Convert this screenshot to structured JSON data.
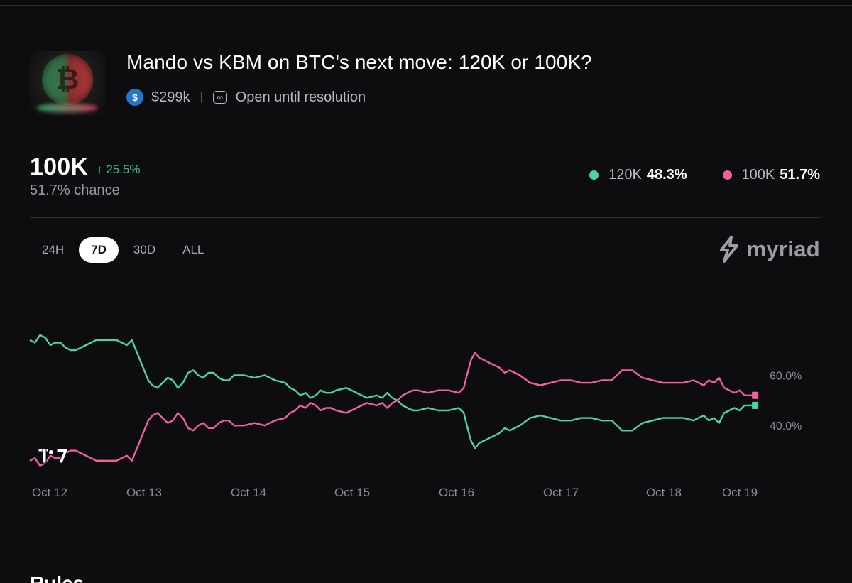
{
  "market": {
    "title": "Mando vs KBM on BTC's next move: 120K or 100K?",
    "volume": "$299k",
    "separator": "|",
    "status": "Open until resolution",
    "thumbnail_icon": "bitcoin-coin-image",
    "currency_icon": "usdc-icon",
    "currency_symbol": "$",
    "status_icon": "infinity-icon",
    "status_symbol": "∞"
  },
  "selected_outcome": {
    "label": "100K",
    "change": "↑ 25.5%",
    "chance": "51.7% chance"
  },
  "legend": [
    {
      "label": "120K",
      "pct": "48.3%",
      "color": "#4fd1a5"
    },
    {
      "label": "100K",
      "pct": "51.7%",
      "color": "#f0609e"
    }
  ],
  "ranges": [
    {
      "label": "24H",
      "active": false
    },
    {
      "label": "7D",
      "active": true
    },
    {
      "label": "30D",
      "active": false
    },
    {
      "label": "ALL",
      "active": false
    }
  ],
  "brand": {
    "name": "myriad",
    "icon": "myriad-logo-icon"
  },
  "watermark": {
    "text": "TV",
    "icon": "tradingview-logo-icon"
  },
  "next_section_heading": "Rules",
  "chart_data": {
    "type": "line",
    "title": "",
    "xlabel": "",
    "ylabel": "",
    "x_ticks": [
      "Oct 12",
      "Oct 13",
      "Oct 14",
      "Oct 15",
      "Oct 16",
      "Oct 17",
      "Oct 18",
      "Oct 19"
    ],
    "x_range": [
      12.0,
      19.12
    ],
    "ylim": [
      20,
      85
    ],
    "y_ticks": [
      {
        "value": 60,
        "label": "60.0%"
      },
      {
        "value": 40,
        "label": "40.0%"
      }
    ],
    "grid": false,
    "series": [
      {
        "name": "120K",
        "color": "#4fd1a5",
        "x": [
          12.0,
          12.05,
          12.1,
          12.15,
          12.2,
          12.25,
          12.3,
          12.35,
          12.4,
          12.45,
          12.5,
          12.55,
          12.6,
          12.65,
          12.7,
          12.75,
          12.8,
          12.85,
          12.9,
          12.95,
          13.0,
          13.08,
          13.12,
          13.16,
          13.2,
          13.25,
          13.3,
          13.35,
          13.4,
          13.45,
          13.5,
          13.55,
          13.6,
          13.65,
          13.7,
          13.75,
          13.8,
          13.85,
          13.9,
          13.95,
          14.0,
          14.1,
          14.2,
          14.3,
          14.4,
          14.5,
          14.55,
          14.6,
          14.65,
          14.7,
          14.75,
          14.8,
          14.85,
          14.9,
          14.95,
          15.0,
          15.1,
          15.2,
          15.3,
          15.4,
          15.45,
          15.5,
          15.55,
          15.6,
          15.65,
          15.7,
          15.75,
          15.8,
          15.9,
          16.0,
          16.1,
          16.2,
          16.25,
          16.28,
          16.32,
          16.36,
          16.4,
          16.45,
          16.5,
          16.55,
          16.6,
          16.65,
          16.7,
          16.8,
          16.9,
          17.0,
          17.1,
          17.2,
          17.3,
          17.4,
          17.5,
          17.6,
          17.7,
          17.8,
          17.9,
          18.0,
          18.1,
          18.2,
          18.3,
          18.4,
          18.5,
          18.55,
          18.6,
          18.65,
          18.7,
          18.75,
          18.8,
          18.85,
          18.9,
          18.95,
          19.0,
          19.05,
          19.1
        ],
        "values": [
          74,
          73,
          76,
          75,
          72,
          73,
          73,
          71,
          70,
          70,
          71,
          72,
          73,
          74,
          74,
          74,
          74,
          74,
          73,
          72,
          74,
          66,
          62,
          58,
          56,
          55,
          57,
          59,
          58,
          55,
          57,
          61,
          62,
          60,
          59,
          61,
          61,
          59,
          58,
          58,
          60,
          60,
          59,
          60,
          58,
          57,
          55,
          54,
          52,
          53,
          51,
          52,
          54,
          53,
          53,
          54,
          55,
          53,
          51,
          52,
          51,
          53,
          51,
          50,
          48,
          47,
          46,
          46,
          47,
          46,
          46,
          47,
          45,
          40,
          34,
          31,
          33,
          34,
          35,
          36,
          37,
          39,
          38,
          40,
          43,
          44,
          43,
          42,
          42,
          43,
          43,
          42,
          42,
          38,
          38,
          41,
          42,
          43,
          43,
          43,
          42,
          43,
          44,
          42,
          43,
          41,
          45,
          46,
          47,
          46,
          48,
          48,
          48
        ]
      },
      {
        "name": "100K",
        "color": "#f0609e",
        "x": [
          12.0,
          12.05,
          12.1,
          12.15,
          12.2,
          12.25,
          12.3,
          12.35,
          12.4,
          12.45,
          12.5,
          12.55,
          12.6,
          12.65,
          12.7,
          12.75,
          12.8,
          12.85,
          12.9,
          12.95,
          13.0,
          13.08,
          13.12,
          13.16,
          13.2,
          13.25,
          13.3,
          13.35,
          13.4,
          13.45,
          13.5,
          13.55,
          13.6,
          13.65,
          13.7,
          13.75,
          13.8,
          13.85,
          13.9,
          13.95,
          14.0,
          14.1,
          14.2,
          14.3,
          14.4,
          14.5,
          14.55,
          14.6,
          14.65,
          14.7,
          14.75,
          14.8,
          14.85,
          14.9,
          14.95,
          15.0,
          15.1,
          15.2,
          15.3,
          15.4,
          15.45,
          15.5,
          15.55,
          15.6,
          15.65,
          15.7,
          15.75,
          15.8,
          15.9,
          16.0,
          16.1,
          16.2,
          16.25,
          16.28,
          16.32,
          16.36,
          16.4,
          16.45,
          16.5,
          16.55,
          16.6,
          16.65,
          16.7,
          16.8,
          16.9,
          17.0,
          17.1,
          17.2,
          17.3,
          17.4,
          17.5,
          17.6,
          17.7,
          17.8,
          17.9,
          18.0,
          18.1,
          18.2,
          18.3,
          18.4,
          18.5,
          18.55,
          18.6,
          18.65,
          18.7,
          18.75,
          18.8,
          18.85,
          18.9,
          18.95,
          19.0,
          19.05,
          19.1
        ],
        "values": [
          26,
          27,
          24,
          25,
          28,
          27,
          27,
          29,
          30,
          30,
          29,
          28,
          27,
          26,
          26,
          26,
          26,
          26,
          27,
          28,
          26,
          34,
          38,
          42,
          44,
          45,
          43,
          41,
          42,
          45,
          43,
          39,
          38,
          40,
          41,
          39,
          39,
          41,
          42,
          42,
          40,
          40,
          41,
          40,
          42,
          43,
          45,
          46,
          48,
          47,
          49,
          48,
          46,
          47,
          47,
          46,
          45,
          47,
          49,
          48,
          49,
          47,
          49,
          50,
          52,
          53,
          54,
          54,
          53,
          54,
          54,
          53,
          55,
          60,
          66,
          69,
          67,
          66,
          65,
          64,
          63,
          61,
          62,
          60,
          57,
          56,
          57,
          58,
          58,
          57,
          57,
          58,
          58,
          62,
          62,
          59,
          58,
          57,
          57,
          57,
          58,
          57,
          56,
          58,
          57,
          59,
          55,
          54,
          53,
          54,
          52,
          52,
          52
        ]
      }
    ]
  }
}
